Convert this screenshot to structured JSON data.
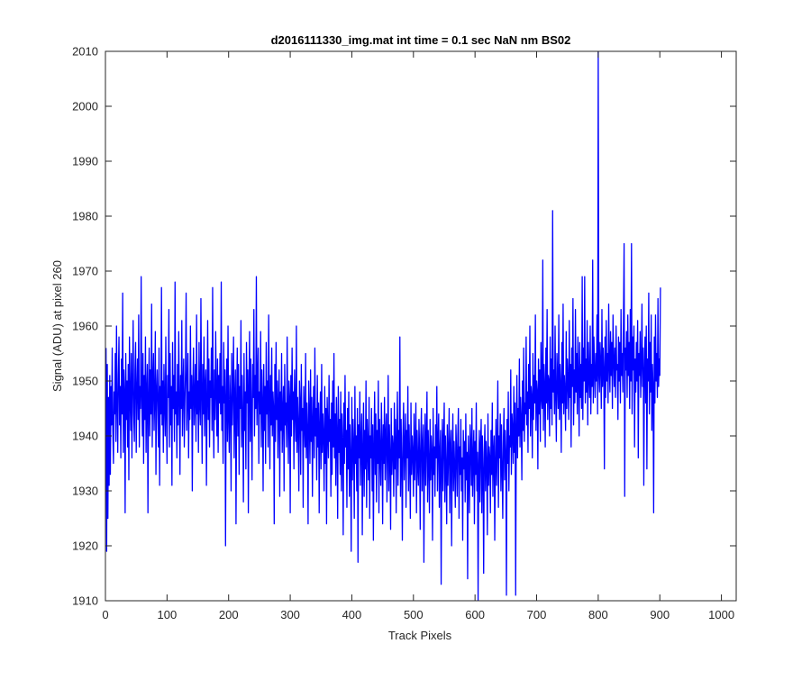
{
  "chart_data": {
    "type": "line",
    "title": "d2016111330_img.mat int time = 0.1 sec  NaN nm BS02",
    "xlabel": "Track Pixels",
    "ylabel": "Signal (ADU) at pixel 260",
    "xlim": [
      0,
      1024
    ],
    "ylim": [
      1910,
      2010
    ],
    "x_ticks": [
      0,
      100,
      200,
      300,
      400,
      500,
      600,
      700,
      800,
      900,
      1000
    ],
    "y_ticks": [
      1910,
      1920,
      1930,
      1940,
      1950,
      1960,
      1970,
      1980,
      1990,
      2000,
      2010
    ],
    "grid": false,
    "legend": "none",
    "series": [
      {
        "color": "#0000ff",
        "x_start": 1,
        "x_step": 1,
        "values": [
          1956,
          1919,
          1953,
          1925,
          1947,
          1931,
          1951,
          1933,
          1949,
          1942,
          1956,
          1941,
          1935,
          1948,
          1944,
          1955,
          1939,
          1960,
          1946,
          1937,
          1951,
          1958,
          1942,
          1949,
          1936,
          1954,
          1944,
          1966,
          1937,
          1952,
          1948,
          1926,
          1955,
          1943,
          1950,
          1938,
          1953,
          1932,
          1958,
          1947,
          1941,
          1955,
          1936,
          1949,
          1961,
          1944,
          1939,
          1952,
          1957,
          1937,
          1948,
          1954,
          1943,
          1962,
          1938,
          1949,
          1945,
          1969,
          1947,
          1940,
          1955,
          1935,
          1951,
          1943,
          1958,
          1937,
          1948,
          1953,
          1926,
          1947,
          1956,
          1940,
          1952,
          1944,
          1964,
          1938,
          1950,
          1955,
          1941,
          1947,
          1959,
          1933,
          1948,
          1952,
          1945,
          1938,
          1956,
          1931,
          1949,
          1944,
          1967,
          1942,
          1950,
          1937,
          1953,
          1946,
          1940,
          1958,
          1944,
          1935,
          1951,
          1947,
          1963,
          1938,
          1955,
          1942,
          1949,
          1931,
          1957,
          1945,
          1951,
          1939,
          1968,
          1944,
          1948,
          1936,
          1953,
          1942,
          1959,
          1947,
          1933,
          1951,
          1945,
          1961,
          1940,
          1949,
          1954,
          1938,
          1946,
          1952,
          1966,
          1941,
          1947,
          1955,
          1936,
          1948,
          1943,
          1960,
          1945,
          1951,
          1930,
          1949,
          1956,
          1942,
          1947,
          1953,
          1939,
          1962,
          1944,
          1950,
          1937,
          1957,
          1946,
          1942,
          1965,
          1948,
          1935,
          1953,
          1944,
          1958,
          1940,
          1949,
          1952,
          1931,
          1946,
          1961,
          1943,
          1954,
          1938,
          1950,
          1947,
          1956,
          1941,
          1967,
          1945,
          1936,
          1952,
          1943,
          1959,
          1948,
          1940,
          1954,
          1937,
          1951,
          1946,
          1955,
          1944,
          1968,
          1941,
          1949,
          1935,
          1957,
          1946,
          1952,
          1920,
          1947,
          1954,
          1939,
          1960,
          1943,
          1937,
          1951,
          1946,
          1930,
          1955,
          1942,
          1949,
          1958,
          1936,
          1947,
          1952,
          1924,
          1946,
          1956,
          1940,
          1953,
          1933,
          1949,
          1945,
          1961,
          1938,
          1951,
          1943,
          1928,
          1955,
          1941,
          1948,
          1934,
          1957,
          1946,
          1952,
          1926,
          1949,
          1959,
          1939,
          1954,
          1944,
          1932,
          1953,
          1947,
          1963,
          1940,
          1951,
          1945,
          1969,
          1942,
          1950,
          1956,
          1935,
          1948,
          1944,
          1959,
          1938,
          1952,
          1946,
          1930,
          1953,
          1941,
          1949,
          1935,
          1957,
          1944,
          1950,
          1938,
          1962,
          1947,
          1934,
          1951,
          1942,
          1956,
          1940,
          1948,
          1945,
          1924,
          1953,
          1939,
          1957,
          1943,
          1950,
          1936,
          1946,
          1952,
          1929,
          1948,
          1941,
          1955,
          1937,
          1944,
          1949,
          1930,
          1953,
          1942,
          1946,
          1938,
          1958,
          1944,
          1935,
          1950,
          1947,
          1926,
          1951,
          1940,
          1956,
          1943,
          1948,
          1934,
          1952,
          1945,
          1939,
          1960,
          1937,
          1947,
          1942,
          1930,
          1950,
          1946,
          1933,
          1953,
          1941,
          1945,
          1927,
          1949,
          1943,
          1938,
          1955,
          1936,
          1946,
          1941,
          1924,
          1950,
          1944,
          1935,
          1952,
          1939,
          1947,
          1929,
          1943,
          1949,
          1936,
          1956,
          1940,
          1945,
          1932,
          1951,
          1938,
          1946,
          1926,
          1942,
          1948,
          1934,
          1953,
          1937,
          1944,
          1940,
          1930,
          1949,
          1935,
          1945,
          1924,
          1947,
          1941,
          1936,
          1951,
          1939,
          1943,
          1929,
          1946,
          1933,
          1950,
          1938,
          1955,
          1936,
          1944,
          1931,
          1947,
          1940,
          1925,
          1949,
          1937,
          1943,
          1933,
          1948,
          1930,
          1944,
          1939,
          1922,
          1946,
          1935,
          1951,
          1938,
          1941,
          1927,
          1945,
          1934,
          1948,
          1929,
          1942,
          1936,
          1919,
          1947,
          1932,
          1943,
          1938,
          1925,
          1949,
          1935,
          1940,
          1930,
          1945,
          1917,
          1942,
          1936,
          1948,
          1931,
          1939,
          1944,
          1922,
          1937,
          1946,
          1929,
          1941,
          1934,
          1950,
          1927,
          1943,
          1938,
          1932,
          1947,
          1925,
          1940,
          1936,
          1945,
          1930,
          1942,
          1921,
          1938,
          1948,
          1933,
          1944,
          1928,
          1941,
          1935,
          1950,
          1926,
          1943,
          1937,
          1931,
          1946,
          1939,
          1924,
          1942,
          1935,
          1947,
          1932,
          1940,
          1944,
          1928,
          1937,
          1951,
          1930,
          1942,
          1936,
          1923,
          1945,
          1933,
          1940,
          1938,
          1929,
          1946,
          1934,
          1943,
          1926,
          1939,
          1948,
          1931,
          1941,
          1936,
          1958,
          1929,
          1943,
          1935,
          1921,
          1940,
          1946,
          1932,
          1938,
          1944,
          1927,
          1941,
          1936,
          1949,
          1930,
          1942,
          1935,
          1925,
          1946,
          1933,
          1940,
          1937,
          1929,
          1944,
          1932,
          1938,
          1946,
          1926,
          1941,
          1935,
          1931,
          1943,
          1937,
          1923,
          1940,
          1945,
          1930,
          1938,
          1942,
          1917,
          1936,
          1944,
          1931,
          1939,
          1948,
          1928,
          1941,
          1935,
          1926,
          1943,
          1932,
          1940,
          1937,
          1921,
          1945,
          1933,
          1938,
          1929,
          1942,
          1936,
          1949,
          1930,
          1939,
          1944,
          1927,
          1937,
          1941,
          1913,
          1935,
          1943,
          1930,
          1939,
          1946,
          1928,
          1940,
          1934,
          1924,
          1942,
          1931,
          1937,
          1945,
          1926,
          1938,
          1941,
          1920,
          1936,
          1944,
          1930,
          1939,
          1934,
          1927,
          1942,
          1937,
          1929,
          1940,
          1945,
          1925,
          1938,
          1933,
          1943,
          1930,
          1936,
          1921,
          1941,
          1934,
          1939,
          1928,
          1944,
          1932,
          1937,
          1914,
          1940,
          1935,
          1926,
          1942,
          1938,
          1931,
          1945,
          1929,
          1936,
          1941,
          1924,
          1939,
          1933,
          1946,
          1930,
          1937,
          1910,
          1935,
          1941,
          1928,
          1938,
          1943,
          1926,
          1940,
          1934,
          1915,
          1937,
          1942,
          1930,
          1939,
          1935,
          1922,
          1944,
          1931,
          1938,
          1936,
          1926,
          1941,
          1933,
          1946,
          1929,
          1937,
          1940,
          1921,
          1935,
          1943,
          1931,
          1938,
          1950,
          1927,
          1940,
          1936,
          1944,
          1930,
          1942,
          1934,
          1925,
          1939,
          1945,
          1932,
          1941,
          1937,
          1911,
          1943,
          1935,
          1948,
          1930,
          1940,
          1938,
          1952,
          1933,
          1944,
          1941,
          1935,
          1949,
          1937,
          1946,
          1911,
          1942,
          1951,
          1936,
          1945,
          1940,
          1954,
          1938,
          1947,
          1943,
          1932,
          1950,
          1941,
          1956,
          1939,
          1946,
          1944,
          1958,
          1942,
          1948,
          1937,
          1953,
          1945,
          1960,
          1940,
          1949,
          1947,
          1936,
          1955,
          1943,
          1951,
          1946,
          1962,
          1941,
          1950,
          1948,
          1934,
          1954,
          1944,
          1952,
          1939,
          1957,
          1947,
          1945,
          1972,
          1941,
          1953,
          1949,
          1938,
          1956,
          1946,
          1963,
          1943,
          1951,
          1950,
          1940,
          1958,
          1945,
          1954,
          1942,
          1981,
          1948,
          1952,
          1944,
          1960,
          1947,
          1939,
          1955,
          1950,
          1945,
          1962,
          1943,
          1953,
          1949,
          1937,
          1957,
          1946,
          1964,
          1944,
          1951,
          1948,
          1941,
          1959,
          1945,
          1954,
          1950,
          1943,
          1961,
          1947,
          1953,
          1938,
          1956,
          1949,
          1965,
          1942,
          1952,
          1946,
          1963,
          1948,
          1955,
          1944,
          1958,
          1951,
          1940,
          1957,
          1947,
          1953,
          1945,
          1969,
          1943,
          1956,
          1950,
          1969,
          1946,
          1954,
          1948,
          1961,
          1942,
          1957,
          1951,
          1947,
          1960,
          1944,
          1953,
          1949,
          1972,
          1946,
          1958,
          1952,
          1947,
          1955,
          1950,
          1962,
          1944,
          2010,
          1951,
          1948,
          1957,
          1953,
          1945,
          1963,
          1949,
          1956,
          1952,
          1934,
          1958,
          1947,
          1961,
          1950,
          1955,
          1946,
          1964,
          1953,
          1948,
          1959,
          1951,
          1957,
          1945,
          1962,
          1954,
          1949,
          1956,
          1947,
          1960,
          1952,
          1953,
          1943,
          1958,
          1950,
          1957,
          1946,
          1963,
          1951,
          1955,
          1948,
          1961,
          1975,
          1929,
          1956,
          1952,
          1959,
          1947,
          1962,
          1951,
          1957,
          1945,
          1963,
          1950,
          1975,
          1944,
          1958,
          1952,
          1960,
          1938,
          1954,
          1948,
          1957,
          1950,
          1961,
          1936,
          1955,
          1951,
          1959,
          1947,
          1953,
          1964,
          1949,
          1956,
          1931,
          1952,
          1958,
          1946,
          1960,
          1934,
          1954,
          1950,
          1966,
          1944,
          1957,
          1948,
          1962,
          1941,
          1953,
          1949,
          1926,
          1958,
          1946,
          1962,
          1950,
          1955,
          1947,
          1965,
          1949,
          1954,
          1951,
          1967
        ]
      }
    ]
  }
}
